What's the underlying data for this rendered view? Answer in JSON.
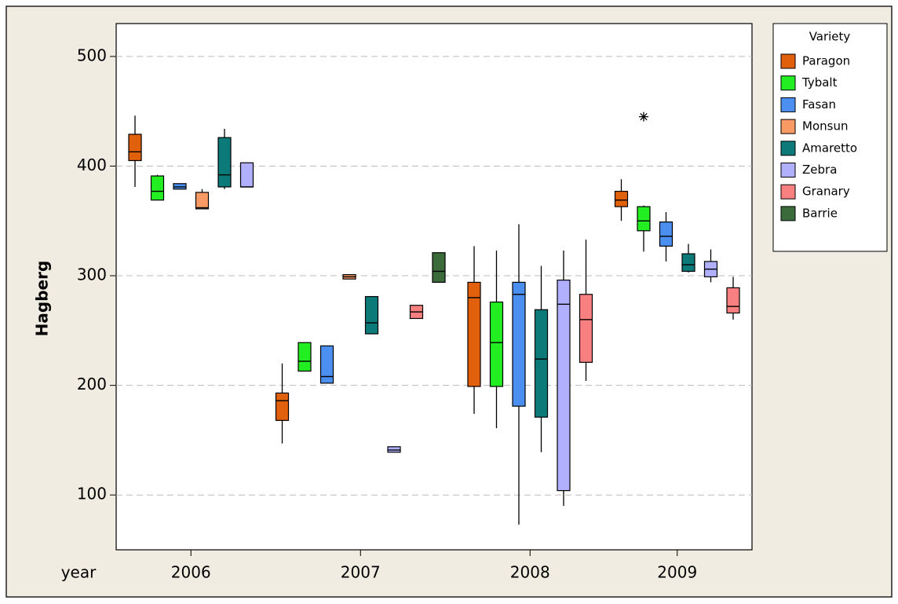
{
  "chart_data": {
    "type": "boxplot",
    "y_label": "Hagberg",
    "x_label": "year",
    "legend_title": "Variety",
    "categories": [
      "2006",
      "2007",
      "2008",
      "2009"
    ],
    "ylim": [
      50,
      530
    ],
    "yticks": [
      100,
      200,
      300,
      400,
      500
    ],
    "grid": true,
    "legend_position": "right",
    "series": [
      {
        "name": "Paragon",
        "color": "#e0600b",
        "values": [
          {
            "min": 381,
            "q1": 405,
            "median": 413,
            "q3": 429,
            "max": 446
          },
          {
            "min": 147,
            "q1": 168,
            "median": 186,
            "q3": 193,
            "max": 220
          },
          {
            "min": 174,
            "q1": 199,
            "median": 280,
            "q3": 294,
            "max": 327
          },
          {
            "min": 350,
            "q1": 363,
            "median": 369,
            "q3": 377,
            "max": 388
          }
        ]
      },
      {
        "name": "Tybalt",
        "color": "#22ee22",
        "values": [
          {
            "min": 369,
            "q1": 369,
            "median": 377,
            "q3": 391,
            "max": 392
          },
          {
            "min": 213,
            "q1": 213,
            "median": 222,
            "q3": 239,
            "max": 239
          },
          {
            "min": 161,
            "q1": 199,
            "median": 239,
            "q3": 276,
            "max": 323
          },
          {
            "min": 322,
            "q1": 341,
            "median": 350,
            "q3": 363,
            "max": 364,
            "outliers": [
              445
            ]
          }
        ]
      },
      {
        "name": "Fasan",
        "color": "#4b8ff0",
        "values": [
          {
            "min": 379,
            "q1": 379,
            "median": 381,
            "q3": 384,
            "max": 384
          },
          {
            "min": 202,
            "q1": 202,
            "median": 208,
            "q3": 236,
            "max": 236
          },
          {
            "min": 73,
            "q1": 181,
            "median": 283,
            "q3": 294,
            "max": 347
          },
          {
            "min": 313,
            "q1": 327,
            "median": 336,
            "q3": 349,
            "max": 358
          }
        ]
      },
      {
        "name": "Monsun",
        "color": "#f79a63",
        "values": [
          {
            "min": 361,
            "q1": 361,
            "median": 362,
            "q3": 376,
            "max": 379
          },
          {
            "min": 297,
            "q1": 297,
            "median": 299,
            "q3": 301,
            "max": 301
          },
          null,
          null
        ]
      },
      {
        "name": "Amaretto",
        "color": "#0d7a7a",
        "values": [
          {
            "min": 379,
            "q1": 381,
            "median": 392,
            "q3": 426,
            "max": 434
          },
          {
            "min": 247,
            "q1": 247,
            "median": 257,
            "q3": 281,
            "max": 281
          },
          {
            "min": 139,
            "q1": 171,
            "median": 224,
            "q3": 269,
            "max": 309
          },
          {
            "min": 303,
            "q1": 304,
            "median": 310,
            "q3": 320,
            "max": 329
          }
        ]
      },
      {
        "name": "Zebra",
        "color": "#b0b0ff",
        "values": [
          {
            "min": 381,
            "q1": 381,
            "median": 381,
            "q3": 403,
            "max": 403
          },
          {
            "min": 139,
            "q1": 139,
            "median": 141,
            "q3": 144,
            "max": 144
          },
          {
            "min": 90,
            "q1": 104,
            "median": 274,
            "q3": 296,
            "max": 323
          },
          {
            "min": 294,
            "q1": 299,
            "median": 306,
            "q3": 313,
            "max": 324
          }
        ]
      },
      {
        "name": "Granary",
        "color": "#f88080",
        "values": [
          null,
          {
            "min": 261,
            "q1": 261,
            "median": 267,
            "q3": 273,
            "max": 273
          },
          {
            "min": 204,
            "q1": 221,
            "median": 260,
            "q3": 283,
            "max": 333
          },
          {
            "min": 260,
            "q1": 266,
            "median": 272,
            "q3": 289,
            "max": 299
          }
        ]
      },
      {
        "name": "Barrie",
        "color": "#3b6b3b",
        "values": [
          null,
          {
            "min": 294,
            "q1": 294,
            "median": 304,
            "q3": 321,
            "max": 321
          },
          null,
          null
        ]
      }
    ]
  }
}
